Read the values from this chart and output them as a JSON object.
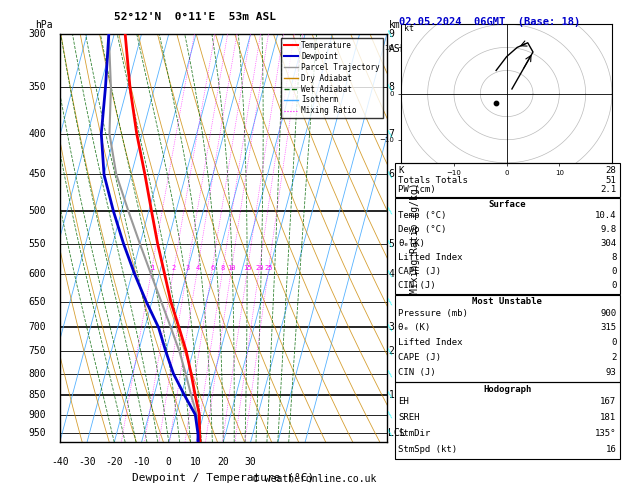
{
  "title": "52°12'N  0°11'E  53m ASL",
  "date_title": "02.05.2024  06GMT  (Base: 18)",
  "xlabel": "Dewpoint / Temperature (°C)",
  "temp_color": "#ff0000",
  "dewp_color": "#0000cc",
  "parcel_color": "#999999",
  "dry_adiabat_color": "#cc8800",
  "wet_adiabat_color": "#006600",
  "isotherm_color": "#44aaff",
  "mixing_ratio_color": "#ff00ff",
  "mixing_ratio_values": [
    1,
    2,
    3,
    4,
    6,
    8,
    10,
    15,
    20,
    25
  ],
  "bg_color": "#ffffff",
  "plevels": [
    300,
    350,
    400,
    450,
    500,
    550,
    600,
    650,
    700,
    750,
    800,
    850,
    900,
    950
  ],
  "stats": {
    "K": 28,
    "Totals_Totals": 51,
    "PW_cm": 2.1,
    "Surface_Temp": 10.4,
    "Surface_Dewp": 9.8,
    "Surface_ThetaE": 304,
    "Surface_LiftedIndex": 8,
    "Surface_CAPE": 0,
    "Surface_CIN": 0,
    "MU_Pressure": 900,
    "MU_ThetaE": 315,
    "MU_LiftedIndex": 0,
    "MU_CAPE": 2,
    "MU_CIN": 93,
    "EH": 167,
    "SREH": 181,
    "StmDir": "135°",
    "StmSpd": 16
  },
  "temperature_profile": {
    "pressure": [
      975,
      950,
      900,
      850,
      800,
      750,
      700,
      650,
      600,
      550,
      500,
      450,
      400,
      350,
      300
    ],
    "temp": [
      11.5,
      10.4,
      8.5,
      5.0,
      1.5,
      -2.5,
      -7.5,
      -13.0,
      -18.0,
      -23.5,
      -29.0,
      -35.0,
      -42.0,
      -49.0,
      -56.0
    ]
  },
  "dewpoint_profile": {
    "pressure": [
      975,
      950,
      900,
      850,
      800,
      750,
      700,
      650,
      600,
      550,
      500,
      450,
      400,
      350,
      300
    ],
    "dewp": [
      10.8,
      9.8,
      7.0,
      1.0,
      -5.0,
      -10.0,
      -15.0,
      -22.0,
      -29.0,
      -36.0,
      -43.0,
      -50.0,
      -55.0,
      -58.0,
      -62.0
    ]
  },
  "parcel_profile": {
    "pressure": [
      975,
      950,
      900,
      850,
      800,
      750,
      700,
      650,
      600,
      550,
      500,
      450,
      400,
      350,
      300
    ],
    "temp": [
      11.5,
      10.4,
      7.5,
      3.5,
      -0.5,
      -5.0,
      -10.5,
      -16.5,
      -23.0,
      -30.0,
      -37.5,
      -45.5,
      -52.0,
      -56.0,
      -62.0
    ]
  }
}
